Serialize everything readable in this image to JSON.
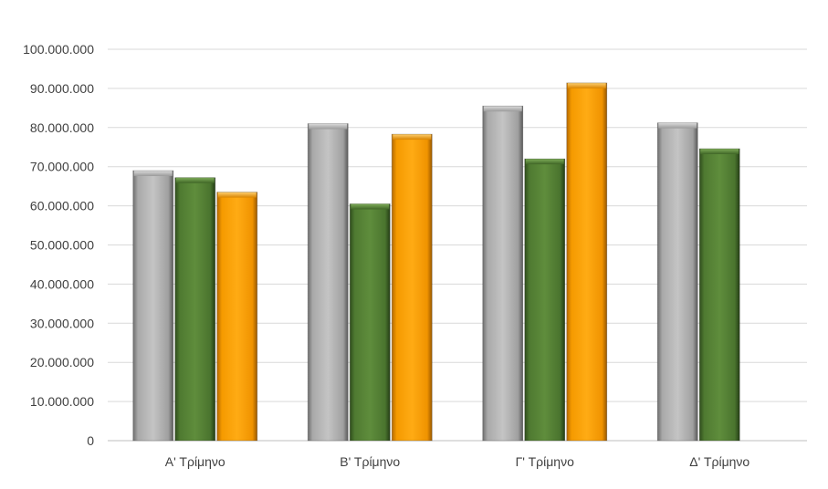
{
  "chart_data": {
    "type": "bar",
    "categories": [
      "Α' Τρίμηνο",
      "Β' Τρίμηνο",
      "Γ' Τρίμηνο",
      "Δ' Τρίμηνο"
    ],
    "series": [
      {
        "color": "#a6a6a6",
        "values": [
          69000000,
          81000000,
          85500000,
          81200000
        ]
      },
      {
        "color": "#548235",
        "values": [
          67200000,
          60500000,
          72000000,
          74600000
        ]
      },
      {
        "color": "#ffa000",
        "values": [
          63500000,
          78300000,
          91400000,
          null
        ]
      }
    ],
    "yticks": [
      "0",
      "10.000.000",
      "20.000.000",
      "30.000.000",
      "40.000.000",
      "50.000.000",
      "60.000.000",
      "70.000.000",
      "80.000.000",
      "90.000.000",
      "100.000.000"
    ],
    "ylim": [
      0,
      100000000
    ],
    "grid": true,
    "title": "",
    "xlabel": "",
    "ylabel": ""
  }
}
